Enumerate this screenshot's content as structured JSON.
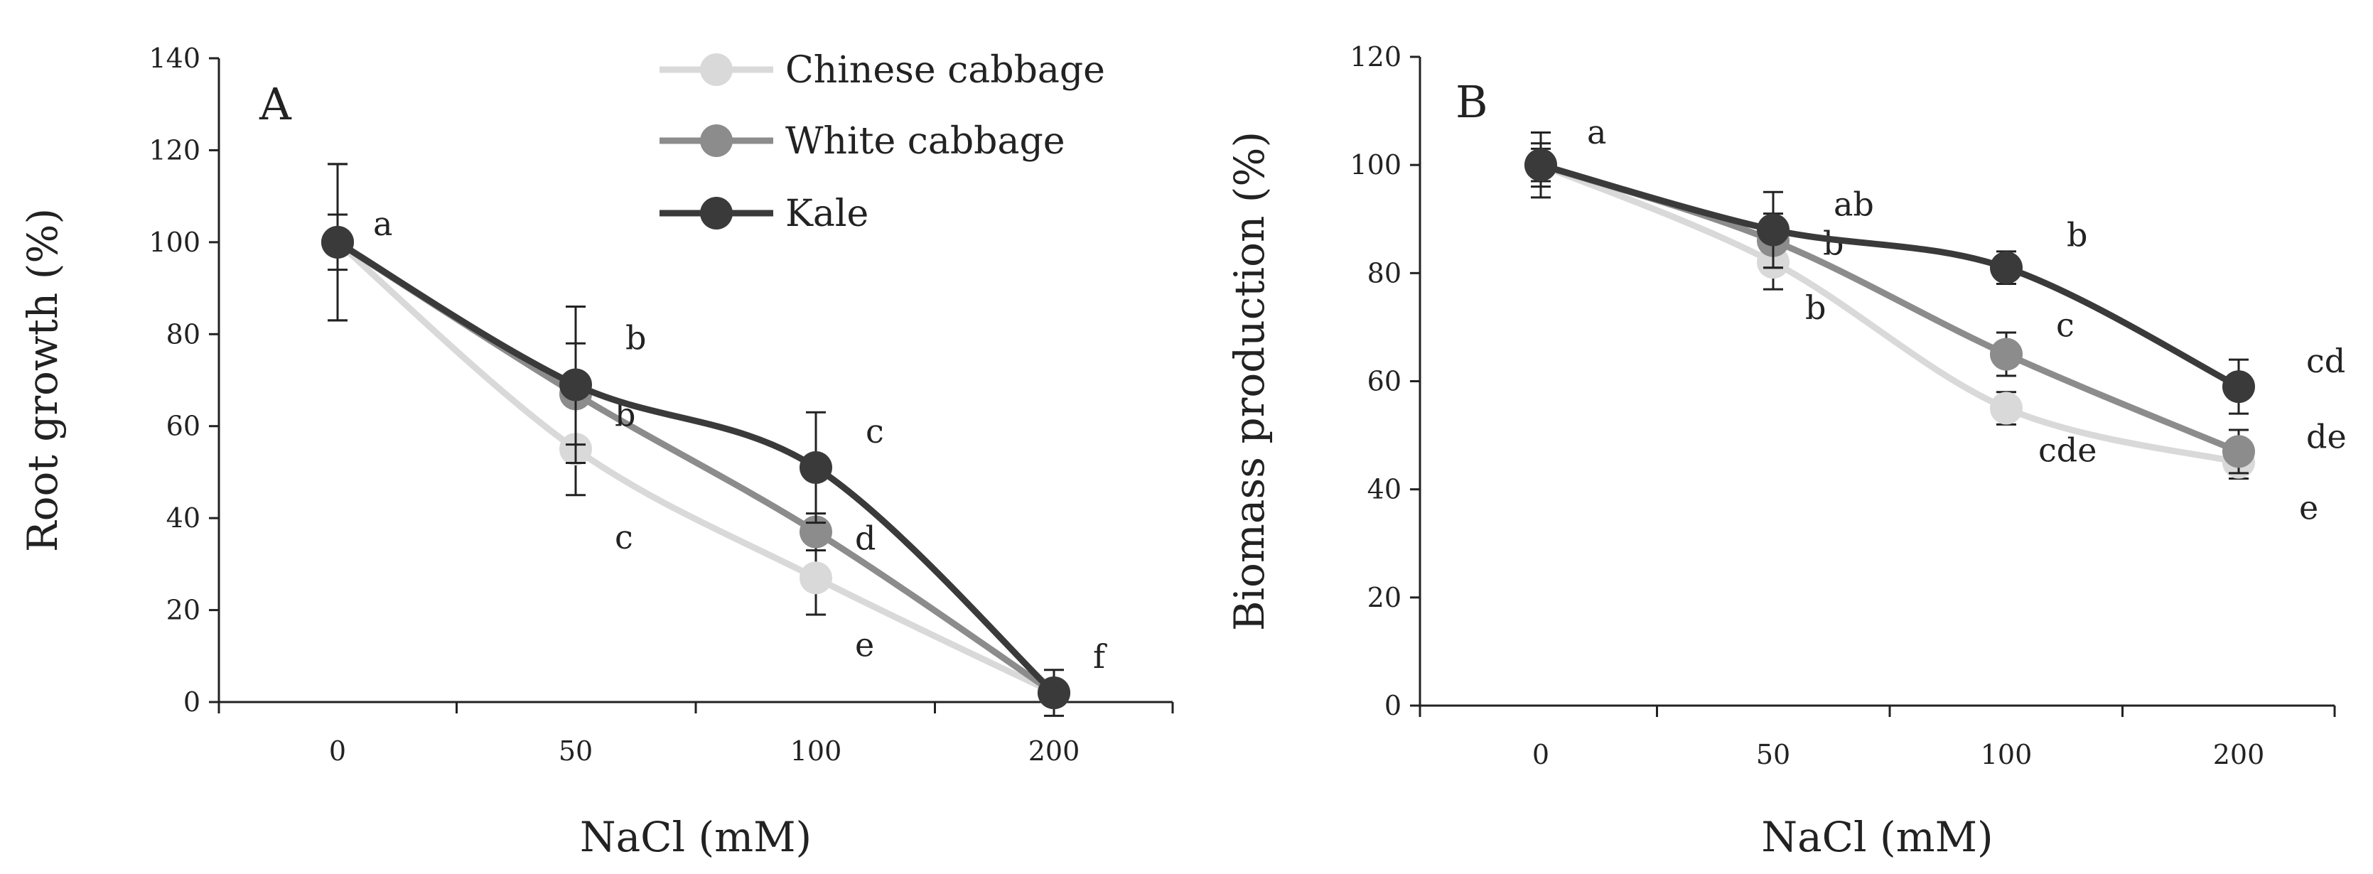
{
  "legend": [
    {
      "name": "Chinese cabbage",
      "color": "#d9d9d9"
    },
    {
      "name": "White cabbage",
      "color": "#8c8c8c"
    },
    {
      "name": "Kale",
      "color": "#3a3a3a"
    }
  ],
  "chart_data": [
    {
      "type": "line",
      "panel_label": "A",
      "xlabel": "NaCl (mM)",
      "ylabel": "Root growth (%)",
      "categories": [
        "0",
        "50",
        "100",
        "200"
      ],
      "ylim": [
        0,
        140
      ],
      "yticks": [
        0,
        20,
        40,
        60,
        80,
        100,
        120,
        140
      ],
      "grid": false,
      "legend_position": "top-right",
      "series": [
        {
          "name": "Chinese cabbage",
          "color": "#d9d9d9",
          "values": [
            100,
            55,
            27,
            2
          ],
          "errors": [
            17,
            10,
            8,
            2
          ],
          "labels": [
            "",
            "c",
            "e",
            ""
          ]
        },
        {
          "name": "White cabbage",
          "color": "#8c8c8c",
          "values": [
            100,
            67,
            37,
            2
          ],
          "errors": [
            6,
            11,
            4,
            2
          ],
          "labels": [
            "",
            "b",
            "d",
            ""
          ]
        },
        {
          "name": "Kale",
          "color": "#3a3a3a",
          "values": [
            100,
            69,
            51,
            2
          ],
          "errors": [
            17,
            17,
            12,
            5
          ],
          "labels": [
            "a",
            "b",
            "c",
            "f"
          ]
        }
      ]
    },
    {
      "type": "line",
      "panel_label": "B",
      "xlabel": "NaCl (mM)",
      "ylabel": "Biomass production (%)",
      "categories": [
        "0",
        "50",
        "100",
        "200"
      ],
      "ylim": [
        0,
        120
      ],
      "yticks": [
        0,
        20,
        40,
        60,
        80,
        100,
        120
      ],
      "grid": false,
      "series": [
        {
          "name": "Chinese cabbage",
          "color": "#d9d9d9",
          "values": [
            100,
            82,
            55,
            45
          ],
          "errors": [
            4,
            5,
            3,
            3
          ],
          "labels": [
            "",
            "b",
            "cde",
            "e"
          ]
        },
        {
          "name": "White cabbage",
          "color": "#8c8c8c",
          "values": [
            100,
            86,
            65,
            47
          ],
          "errors": [
            3,
            5,
            4,
            4
          ],
          "labels": [
            "",
            "b",
            "c",
            "de"
          ]
        },
        {
          "name": "Kale",
          "color": "#3a3a3a",
          "values": [
            100,
            88,
            81,
            59
          ],
          "errors": [
            6,
            7,
            3,
            5
          ],
          "labels": [
            "a",
            "ab",
            "b",
            "cd"
          ]
        }
      ]
    }
  ]
}
